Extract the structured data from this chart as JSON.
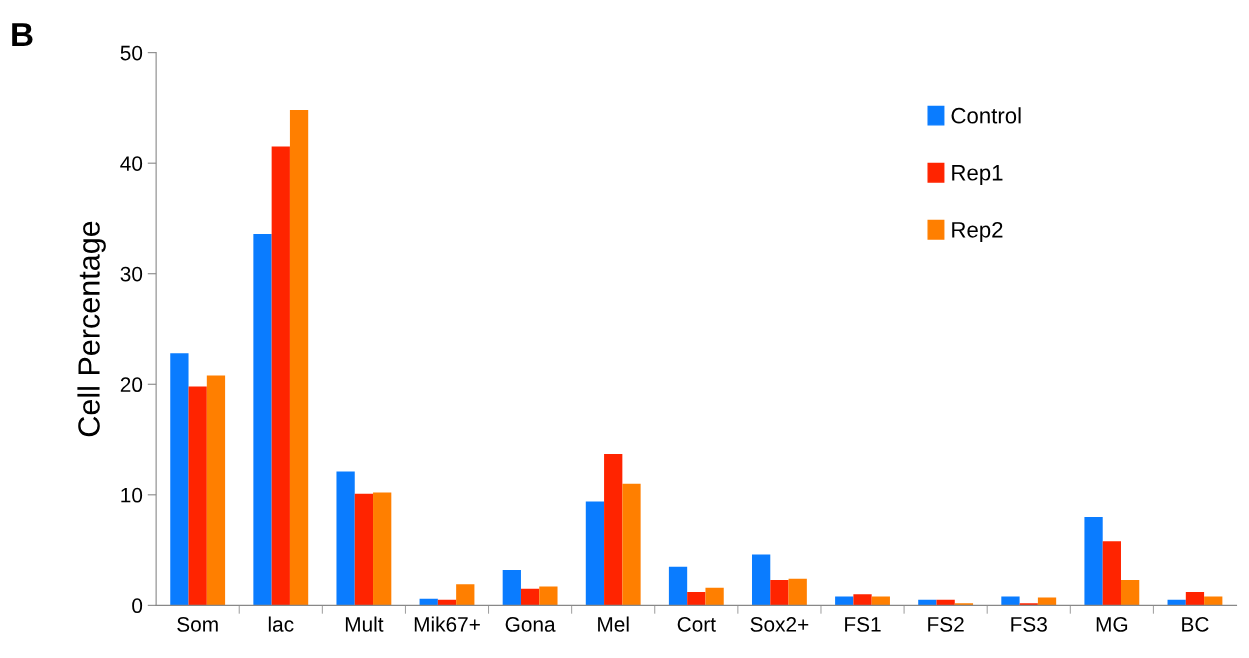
{
  "chart_data": {
    "type": "bar",
    "ylabel": "Cell Percentage",
    "annotations": [
      "B"
    ],
    "categories": [
      "Som",
      "lac",
      "Mult",
      "Mik67+",
      "Gona",
      "Mel",
      "Cort",
      "Sox2+",
      "FS1",
      "FS2",
      "FS3",
      "MG",
      "BC"
    ],
    "series": [
      {
        "name": "Control",
        "color": "#0a7cff",
        "values": [
          22.8,
          33.6,
          12.1,
          0.6,
          3.2,
          9.4,
          3.5,
          4.6,
          0.8,
          0.5,
          0.8,
          8.0,
          0.5
        ]
      },
      {
        "name": "Rep1",
        "color": "#ff2400",
        "values": [
          19.8,
          41.5,
          10.1,
          0.5,
          1.5,
          13.7,
          1.2,
          2.3,
          1.0,
          0.5,
          0.2,
          5.8,
          1.2
        ]
      },
      {
        "name": "Rep2",
        "color": "#ff7f00",
        "values": [
          20.8,
          44.8,
          10.2,
          1.9,
          1.7,
          11.0,
          1.6,
          2.4,
          0.8,
          0.2,
          0.7,
          2.3,
          0.8
        ]
      }
    ],
    "ylim": [
      0,
      50
    ],
    "yticks": [
      0,
      10,
      20,
      30,
      40,
      50
    ],
    "grid": false,
    "legend": "right"
  }
}
